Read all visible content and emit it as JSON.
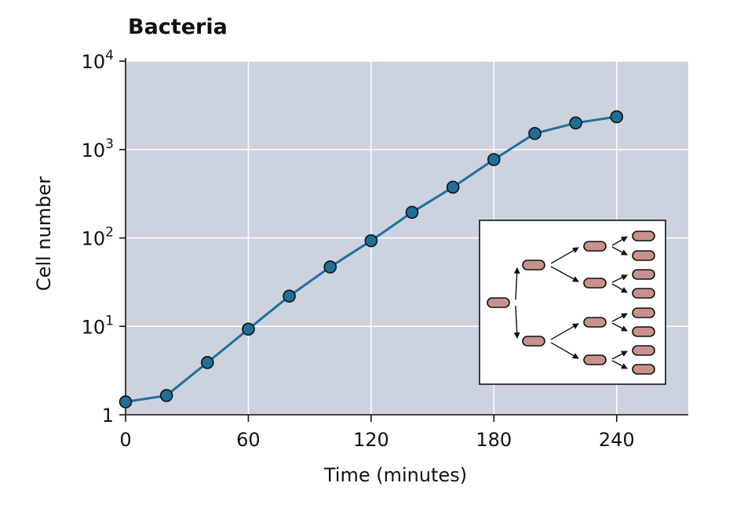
{
  "chart_data": {
    "type": "line",
    "title": "Bacteria",
    "xlabel": "Time (minutes)",
    "ylabel": "Cell number",
    "y_scale": "log",
    "xlim": [
      0,
      275
    ],
    "ylim": [
      1,
      10000
    ],
    "x_ticks": [
      0,
      60,
      120,
      180,
      240
    ],
    "y_ticks": [
      {
        "value": 1,
        "base": "1",
        "exp": ""
      },
      {
        "value": 10,
        "base": "10",
        "exp": "1"
      },
      {
        "value": 100,
        "base": "10",
        "exp": "2"
      },
      {
        "value": 1000,
        "base": "10",
        "exp": "3"
      },
      {
        "value": 10000,
        "base": "10",
        "exp": "4"
      }
    ],
    "grid": true,
    "colors": {
      "plot_bg": "#ccd3df",
      "line": "#1f6f99",
      "marker": "#1f6f99",
      "cell_fill": "#c9918c"
    },
    "series": [
      {
        "x": [
          0,
          20,
          40,
          60,
          80,
          100,
          120,
          140,
          160,
          180,
          200,
          220,
          240
        ],
        "y": [
          1.4,
          1.65,
          3.9,
          9.3,
          22,
          47,
          93,
          195,
          375,
          770,
          1520,
          2000,
          2350
        ]
      }
    ],
    "inset": {
      "description_icon": "bacterial-division-tree-icon",
      "generations": 4
    }
  }
}
